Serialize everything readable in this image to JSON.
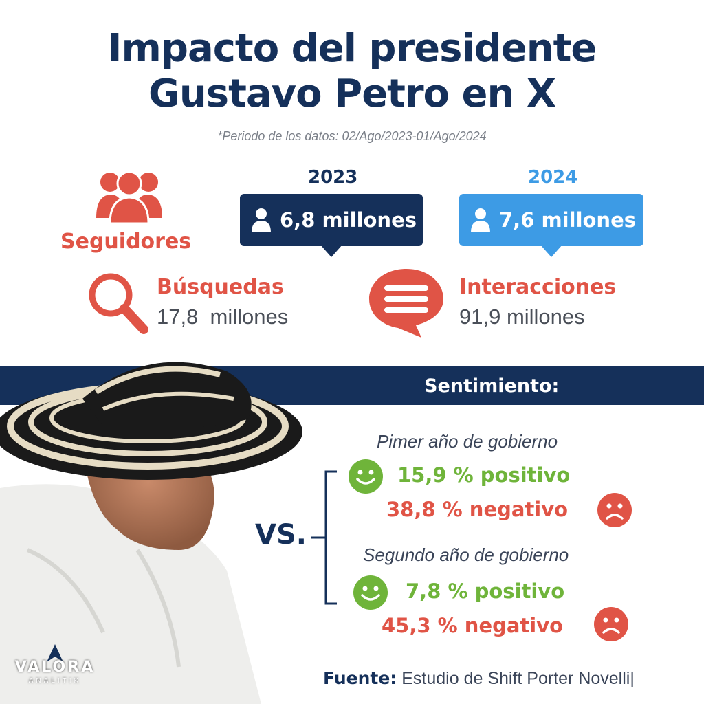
{
  "title_line1": "Impacto del presidente",
  "title_line2": "Gustavo Petro en X",
  "subtitle": "*Periodo de los datos: 02/Ago/2023-01/Ago/2024",
  "followers": {
    "label": "Seguidores",
    "year_2023": "2023",
    "value_2023": "6,8 millones",
    "year_2024": "2024",
    "value_2024": "7,6 millones"
  },
  "searches": {
    "label": "Búsquedas",
    "value": "17,8  millones"
  },
  "interactions": {
    "label": "Interacciones",
    "value": "91,9 millones"
  },
  "sentiment": {
    "label": "Sentimiento:",
    "vs": "VS.",
    "first": {
      "period": "Pimer año de gobierno",
      "positive": "15,9 % positivo",
      "negative": "38,8 % negativo"
    },
    "second": {
      "period": "Segundo año de gobierno",
      "positive": "7,8 % positivo",
      "negative": "45,3 % negativo"
    }
  },
  "logo": {
    "name": "VALORA",
    "sub": "ANALITIK"
  },
  "source": {
    "label": "Fuente:",
    "text": " Estudio de Shift Porter Novelli|"
  },
  "colors": {
    "navy": "#15305a",
    "blue": "#3d9be5",
    "red": "#e05446",
    "green": "#6fb43a"
  },
  "icons": [
    "people-icon",
    "user-icon",
    "search-icon",
    "chat-icon",
    "smile-icon",
    "sad-icon"
  ]
}
